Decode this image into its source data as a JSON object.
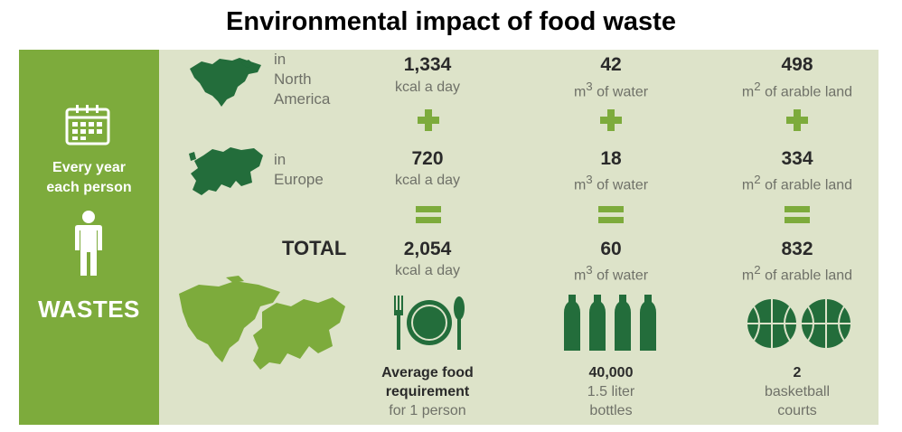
{
  "title": "Environmental impact of food waste",
  "sidebar": {
    "line1": "Every year",
    "line2": "each person",
    "wastes": "WASTES"
  },
  "rows": {
    "north_america": {
      "in": "in",
      "region": [
        "North",
        "America"
      ]
    },
    "europe": {
      "in": "in",
      "region": "Europe"
    },
    "total": "TOTAL"
  },
  "columns": [
    {
      "na_value": "1,334",
      "eu_value": "720",
      "total_value": "2,054",
      "unit": "kcal a day",
      "caption": {
        "line1": "Average food",
        "line2": "requirement",
        "line3": "for 1 person"
      }
    },
    {
      "na_value": "42",
      "eu_value": "18",
      "total_value": "60",
      "unit_prefix": "m",
      "unit_sup": "3",
      "unit_suffix": " of water",
      "caption": {
        "line1": "40,000",
        "line2": "1.5 liter",
        "line3": "bottles"
      }
    },
    {
      "na_value": "498",
      "eu_value": "334",
      "total_value": "832",
      "unit_prefix": "m",
      "unit_sup": "2",
      "unit_suffix": " of arable land",
      "caption": {
        "line1": "2",
        "line2": "basketball",
        "line3": "courts"
      }
    }
  ],
  "colors": {
    "sidebar": "#7dab3c",
    "panel": "#dde3c9",
    "dark_green": "#236d3b",
    "accent_green": "#7dab3c"
  },
  "icons": [
    "calendar-icon",
    "person-icon",
    "plus-icon",
    "equals-icon",
    "plate-icon",
    "bottle-icon",
    "basketball-icon"
  ]
}
